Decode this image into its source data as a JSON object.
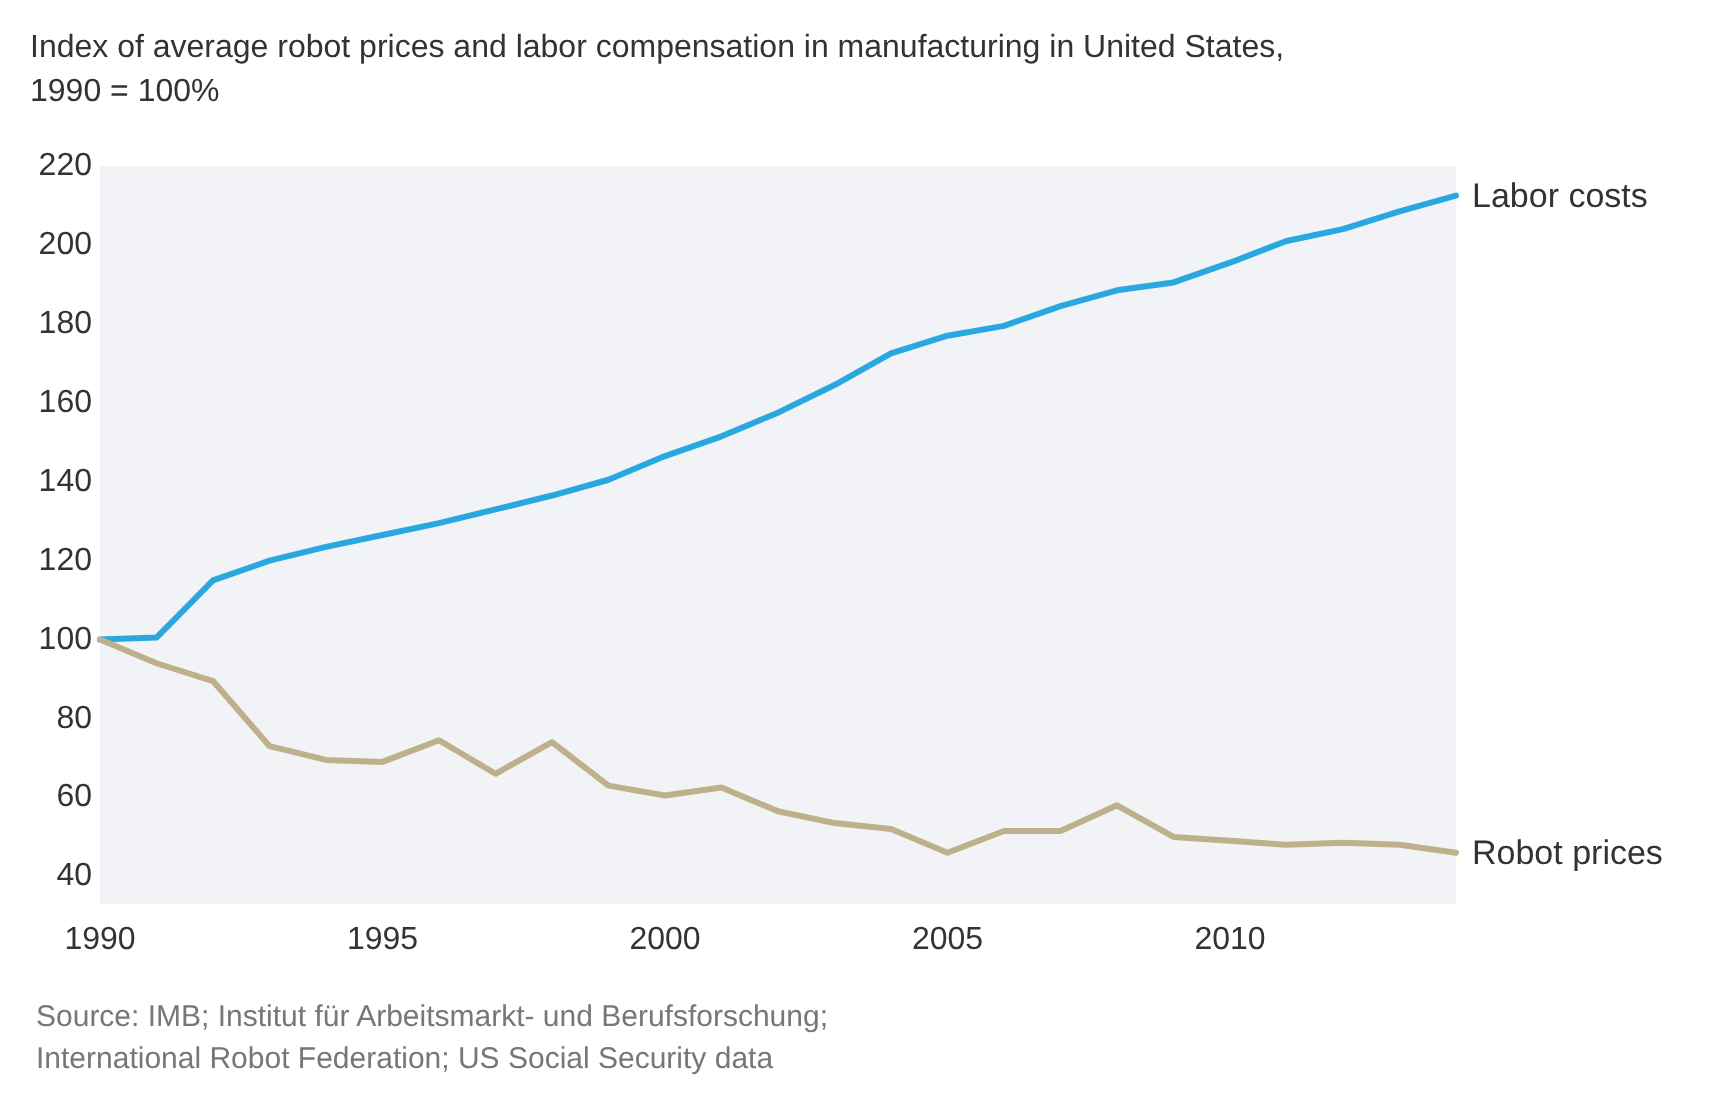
{
  "chart_data": {
    "type": "line",
    "title": "Index of average robot prices and labor compensation in manufacturing in United States,\n1990 = 100%",
    "x": [
      1990,
      1991,
      1992,
      1993,
      1994,
      1995,
      1996,
      1997,
      1998,
      1999,
      2000,
      2001,
      2002,
      2003,
      2004,
      2005,
      2006,
      2007,
      2008,
      2009,
      2010,
      2011,
      2012,
      2013,
      2014
    ],
    "series": [
      {
        "name": "Labor costs",
        "color": "#29a8e0",
        "values": [
          100,
          100.5,
          115,
          120,
          123.5,
          126.5,
          129.5,
          133,
          136.5,
          140.5,
          146.5,
          151.5,
          157.5,
          164.5,
          172.5,
          177,
          179.5,
          184.5,
          188.5,
          190.5,
          195.5,
          201,
          204,
          208.5,
          212.5
        ]
      },
      {
        "name": "Robot prices",
        "color": "#bfb08c",
        "values": [
          100,
          94,
          89.5,
          73,
          69.5,
          69,
          74.5,
          66,
          74,
          63,
          60.5,
          62.5,
          56.5,
          53.5,
          52,
          46,
          51.5,
          51.5,
          58,
          50,
          49,
          48,
          48.5,
          48,
          46
        ]
      }
    ],
    "xlim": [
      1990,
      2014
    ],
    "xticks": [
      1990,
      1995,
      2000,
      2005,
      2010
    ],
    "ylim": [
      33,
      220
    ],
    "yticks": [
      40,
      60,
      80,
      100,
      120,
      140,
      160,
      180,
      200,
      220
    ],
    "grid": false,
    "legend": false,
    "marker": "none",
    "line_style": "solid",
    "annotations": [
      "Source: IMB; Institut für Arbeitsmarkt- und Berufsforschung;\nInternational Robot Federation; US Social Security data"
    ]
  }
}
